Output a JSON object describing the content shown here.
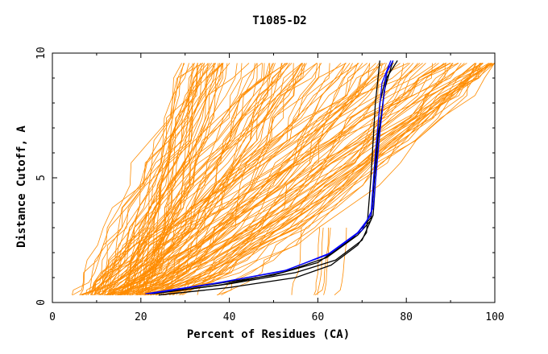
{
  "chart_data": {
    "type": "line",
    "title": "T1085-D2",
    "xlabel": "Percent of Residues (CA)",
    "ylabel": "Distance Cutoff, A",
    "xlim": [
      0,
      100
    ],
    "ylim": [
      0,
      10
    ],
    "x_ticks": [
      0,
      20,
      40,
      60,
      80,
      100
    ],
    "y_ticks": [
      0,
      5,
      10
    ],
    "x_tick_labels": [
      "0",
      "20",
      "40",
      "60",
      "80",
      "100"
    ],
    "y_tick_labels": [
      "0",
      "5",
      "10"
    ],
    "grid": false,
    "legend": "none",
    "colors": {
      "background_series": "#ff8c00",
      "highlight_black": "#000000",
      "highlight_blue": "#0000ff"
    },
    "background_series_count": 150,
    "highlight_series": [
      {
        "color": "#000000",
        "points": [
          [
            21.5,
            0.35
          ],
          [
            35,
            0.7
          ],
          [
            50,
            1.1
          ],
          [
            60,
            1.6
          ],
          [
            68,
            2.6
          ],
          [
            72,
            3.4
          ],
          [
            73,
            5.5
          ],
          [
            74,
            8.0
          ],
          [
            76,
            9.5
          ]
        ]
      },
      {
        "color": "#000000",
        "points": [
          [
            22.5,
            0.35
          ],
          [
            40,
            0.75
          ],
          [
            55,
            1.2
          ],
          [
            64,
            1.7
          ],
          [
            70,
            2.5
          ],
          [
            72.5,
            3.5
          ],
          [
            73.5,
            6.0
          ],
          [
            75,
            8.5
          ],
          [
            77,
            9.7
          ]
        ]
      },
      {
        "color": "#000000",
        "points": [
          [
            24,
            0.3
          ],
          [
            40,
            0.6
          ],
          [
            55,
            1.0
          ],
          [
            63,
            1.5
          ],
          [
            69,
            2.3
          ],
          [
            71,
            2.8
          ],
          [
            72,
            5.0
          ],
          [
            73,
            8.0
          ],
          [
            74,
            9.7
          ]
        ]
      },
      {
        "color": "#000000",
        "points": [
          [
            23,
            0.35
          ],
          [
            38,
            0.7
          ],
          [
            52,
            1.2
          ],
          [
            62,
            1.8
          ],
          [
            69,
            2.7
          ],
          [
            72,
            3.3
          ],
          [
            73.5,
            6.5
          ],
          [
            75.5,
            9.0
          ],
          [
            78,
            9.7
          ]
        ]
      },
      {
        "color": "#0000ff",
        "points": [
          [
            21,
            0.35
          ],
          [
            36,
            0.75
          ],
          [
            52,
            1.25
          ],
          [
            62,
            1.9
          ],
          [
            69,
            2.8
          ],
          [
            72,
            3.5
          ],
          [
            73,
            6.0
          ],
          [
            74.5,
            8.8
          ],
          [
            76.5,
            9.7
          ]
        ]
      },
      {
        "color": "#0000ff",
        "points": [
          [
            22,
            0.35
          ],
          [
            38,
            0.8
          ],
          [
            53,
            1.3
          ],
          [
            63,
            2.0
          ],
          [
            70,
            2.9
          ],
          [
            72.5,
            3.8
          ],
          [
            74,
            6.8
          ],
          [
            75.5,
            9.2
          ],
          [
            77,
            9.7
          ]
        ]
      }
    ]
  }
}
